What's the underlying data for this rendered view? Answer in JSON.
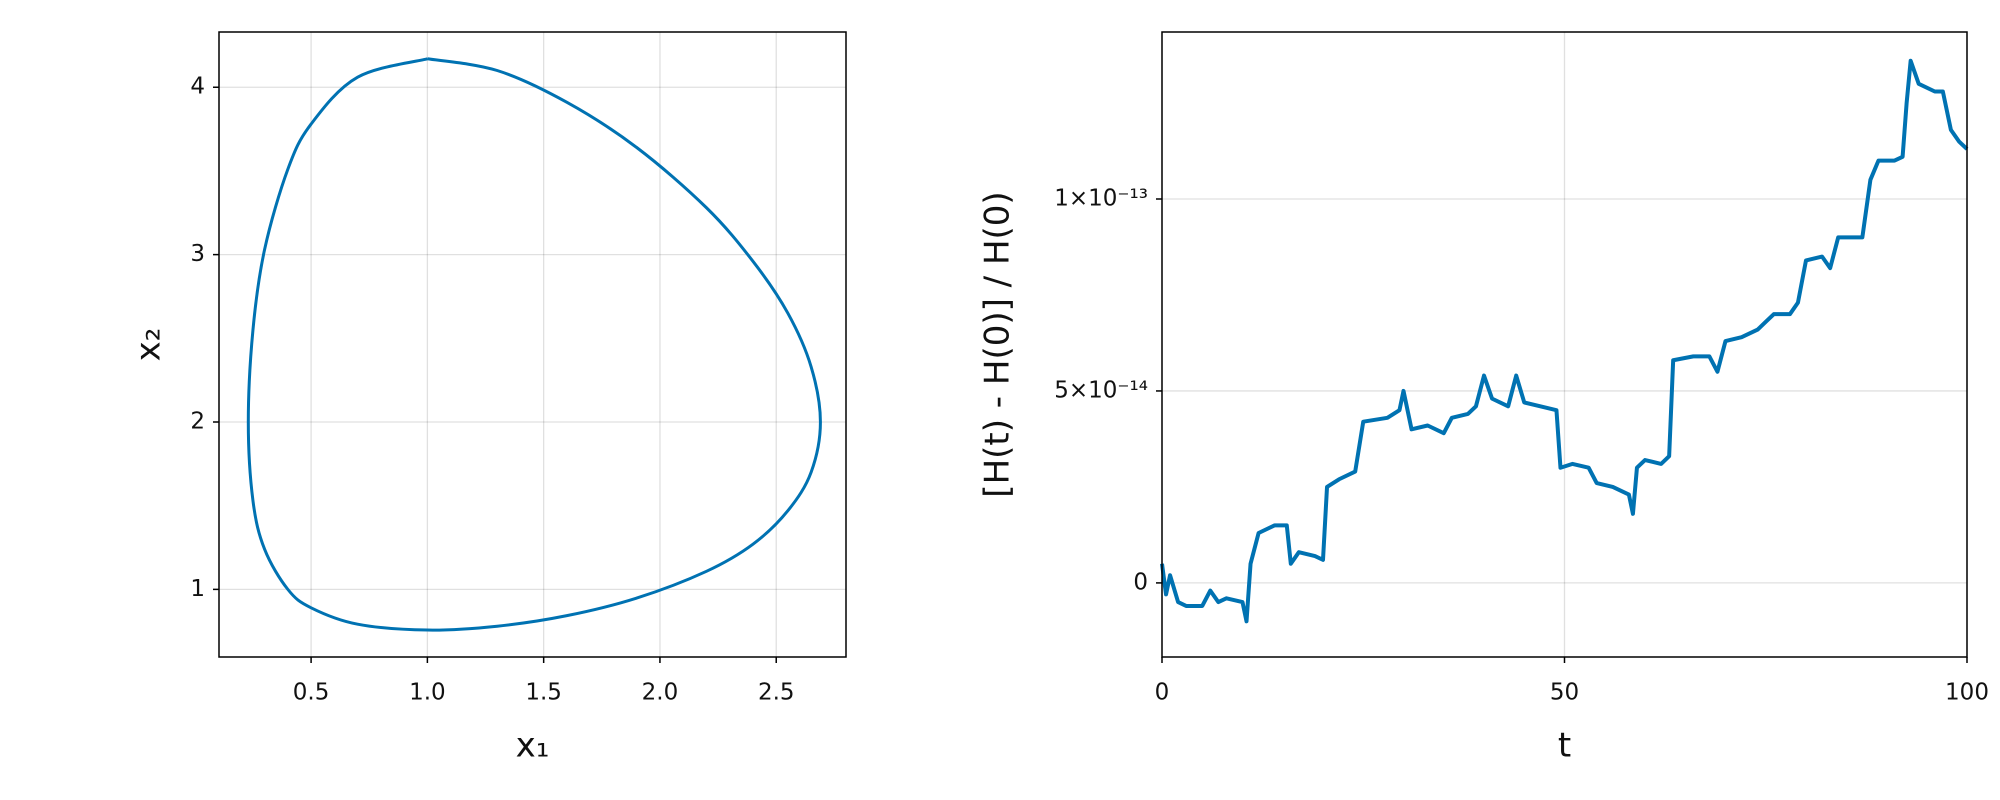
{
  "chart_data": [
    {
      "type": "line",
      "color": "#0072b2",
      "xlabel": "x₁",
      "ylabel": "x₂",
      "x": [
        1.0,
        1.3,
        1.6,
        1.9,
        2.2,
        2.4,
        2.55,
        2.65,
        2.69,
        2.65,
        2.55,
        2.4,
        2.2,
        1.9,
        1.6,
        1.3,
        1.0,
        0.7,
        0.5,
        0.4,
        0.3,
        0.25,
        0.23,
        0.25,
        0.3,
        0.4,
        0.5,
        0.7,
        1.0
      ],
      "values": [
        4.17,
        4.1,
        3.91,
        3.64,
        3.28,
        2.96,
        2.65,
        2.33,
        2.0,
        1.7,
        1.47,
        1.27,
        1.108,
        0.948,
        0.843,
        0.78,
        0.757,
        0.792,
        0.89,
        1.0,
        1.24,
        1.53,
        2.0,
        2.55,
        3.03,
        3.51,
        3.78,
        4.06,
        4.17
      ],
      "xlim": [
        0.104,
        2.8
      ],
      "ylim": [
        0.596,
        4.33
      ],
      "xticks": [
        0.5,
        {
          "value": 1,
          "label": "1.0"
        },
        1.5,
        {
          "value": 2,
          "label": "2.0"
        },
        2.5
      ],
      "yticks": [
        1,
        2,
        3,
        4
      ],
      "grid": true
    },
    {
      "type": "line",
      "color": "#0072b2",
      "xlabel": "t",
      "ylabel": "[H(t) - H(0)] / H(0)",
      "x": [
        0,
        0.5,
        1,
        2,
        3,
        5,
        6,
        7,
        8,
        10,
        10.5,
        11,
        12,
        14,
        15.5,
        16,
        17,
        19,
        20,
        20.5,
        22,
        24,
        25,
        28,
        29.5,
        30,
        31,
        33,
        35,
        36,
        38,
        39,
        40,
        41,
        43,
        44,
        45,
        47,
        49,
        49.5,
        51,
        53,
        54,
        56,
        58,
        58.5,
        59,
        60,
        62,
        63,
        63.5,
        66,
        68,
        69,
        70,
        72,
        74,
        75,
        76,
        78,
        79,
        80,
        82,
        83,
        84,
        86,
        87,
        88,
        89,
        91,
        92,
        92.5,
        93,
        94,
        96,
        97,
        98,
        99,
        100
      ],
      "values": [
        5e-15,
        -3e-15,
        2e-15,
        -5e-15,
        -6e-15,
        -6e-15,
        -2e-15,
        -5e-15,
        -4e-15,
        -5e-15,
        -1e-14,
        5e-15,
        1.3e-14,
        1.5e-14,
        1.5e-14,
        5e-15,
        8e-15,
        7e-15,
        6e-15,
        2.5e-14,
        2.7e-14,
        2.9e-14,
        4.2e-14,
        4.3e-14,
        4.5e-14,
        5e-14,
        4e-14,
        4.1e-14,
        3.9e-14,
        4.3e-14,
        4.4e-14,
        4.6e-14,
        5.4e-14,
        4.8e-14,
        4.6e-14,
        5.4e-14,
        4.7e-14,
        4.6e-14,
        4.5e-14,
        3e-14,
        3.1e-14,
        3e-14,
        2.6e-14,
        2.5e-14,
        2.3e-14,
        1.8e-14,
        3e-14,
        3.2e-14,
        3.1e-14,
        3.3e-14,
        5.8e-14,
        5.9e-14,
        5.9e-14,
        5.5e-14,
        6.3e-14,
        6.4e-14,
        6.6e-14,
        6.8e-14,
        7e-14,
        7e-14,
        7.3e-14,
        8.4e-14,
        8.5e-14,
        8.2e-14,
        9e-14,
        9e-14,
        9e-14,
        1.05e-13,
        1.1e-13,
        1.1e-13,
        1.11e-13,
        1.25e-13,
        1.36e-13,
        1.3e-13,
        1.28e-13,
        1.28e-13,
        1.18e-13,
        1.15e-13,
        1.13e-13
      ],
      "xlim": [
        0,
        100
      ],
      "ylim": [
        -1.93e-14,
        1.435e-13
      ],
      "xticks": [
        0,
        50,
        100
      ],
      "yticks": [
        0,
        {
          "value": 5e-14,
          "label": "5×10⁻¹⁴"
        },
        {
          "value": 1e-13,
          "label": "1×10⁻¹³"
        }
      ],
      "grid": true
    }
  ]
}
